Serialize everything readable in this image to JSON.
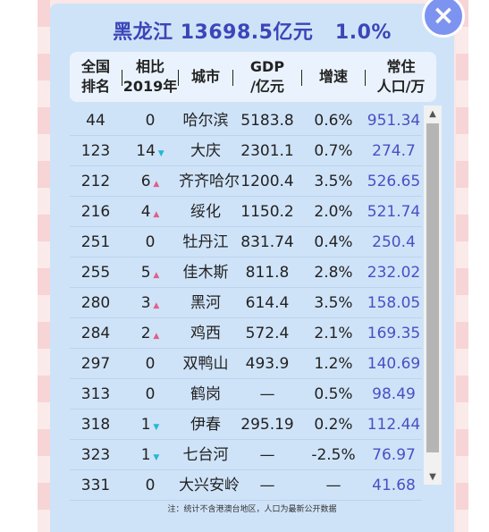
{
  "title": "黑龙江 13698.5亿元   1.0%",
  "close_label": "×",
  "header": {
    "rank": [
      "全国",
      "排名"
    ],
    "compare": [
      "相比",
      "2019年"
    ],
    "city": "城市",
    "gdp": [
      "GDP",
      "/亿元"
    ],
    "growth": "增速",
    "population": [
      "常住",
      "人口/万"
    ]
  },
  "rows": [
    {
      "rank": "44",
      "change": "0",
      "trend": "",
      "city": "哈尔滨",
      "gdp": "5183.8",
      "growth": "0.6%",
      "pop": "951.34"
    },
    {
      "rank": "123",
      "change": "14",
      "trend": "down",
      "city": "大庆",
      "gdp": "2301.1",
      "growth": "0.7%",
      "pop": "274.7"
    },
    {
      "rank": "212",
      "change": "6",
      "trend": "up",
      "city": "齐齐哈尔",
      "gdp": "1200.4",
      "growth": "3.5%",
      "pop": "526.65"
    },
    {
      "rank": "216",
      "change": "4",
      "trend": "up",
      "city": "绥化",
      "gdp": "1150.2",
      "growth": "2.0%",
      "pop": "521.74"
    },
    {
      "rank": "251",
      "change": "0",
      "trend": "",
      "city": "牡丹江",
      "gdp": "831.74",
      "growth": "0.4%",
      "pop": "250.4"
    },
    {
      "rank": "255",
      "change": "5",
      "trend": "up",
      "city": "佳木斯",
      "gdp": "811.8",
      "growth": "2.8%",
      "pop": "232.02"
    },
    {
      "rank": "280",
      "change": "3",
      "trend": "up",
      "city": "黑河",
      "gdp": "614.4",
      "growth": "3.5%",
      "pop": "158.05"
    },
    {
      "rank": "284",
      "change": "2",
      "trend": "up",
      "city": "鸡西",
      "gdp": "572.4",
      "growth": "2.1%",
      "pop": "169.35"
    },
    {
      "rank": "297",
      "change": "0",
      "trend": "",
      "city": "双鸭山",
      "gdp": "493.9",
      "growth": "1.2%",
      "pop": "140.69"
    },
    {
      "rank": "313",
      "change": "0",
      "trend": "",
      "city": "鹤岗",
      "gdp": "—",
      "growth": "0.5%",
      "pop": "98.49"
    },
    {
      "rank": "318",
      "change": "1",
      "trend": "down",
      "city": "伊春",
      "gdp": "295.19",
      "growth": "0.2%",
      "pop": "112.44"
    },
    {
      "rank": "323",
      "change": "1",
      "trend": "down",
      "city": "七台河",
      "gdp": "—",
      "growth": "-2.5%",
      "pop": "76.97"
    },
    {
      "rank": "331",
      "change": "0",
      "trend": "",
      "city": "大兴安岭",
      "gdp": "—",
      "growth": "—",
      "pop": "41.68"
    }
  ],
  "footnote": "注：统计不含港澳台地区，人口为最新公开数据",
  "colors": {
    "panel": "#cfe3f8",
    "title": "#3b46b8",
    "population": "#4a4fc4",
    "up_arrow": "#e0608a",
    "down_arrow": "#23b9d2"
  }
}
